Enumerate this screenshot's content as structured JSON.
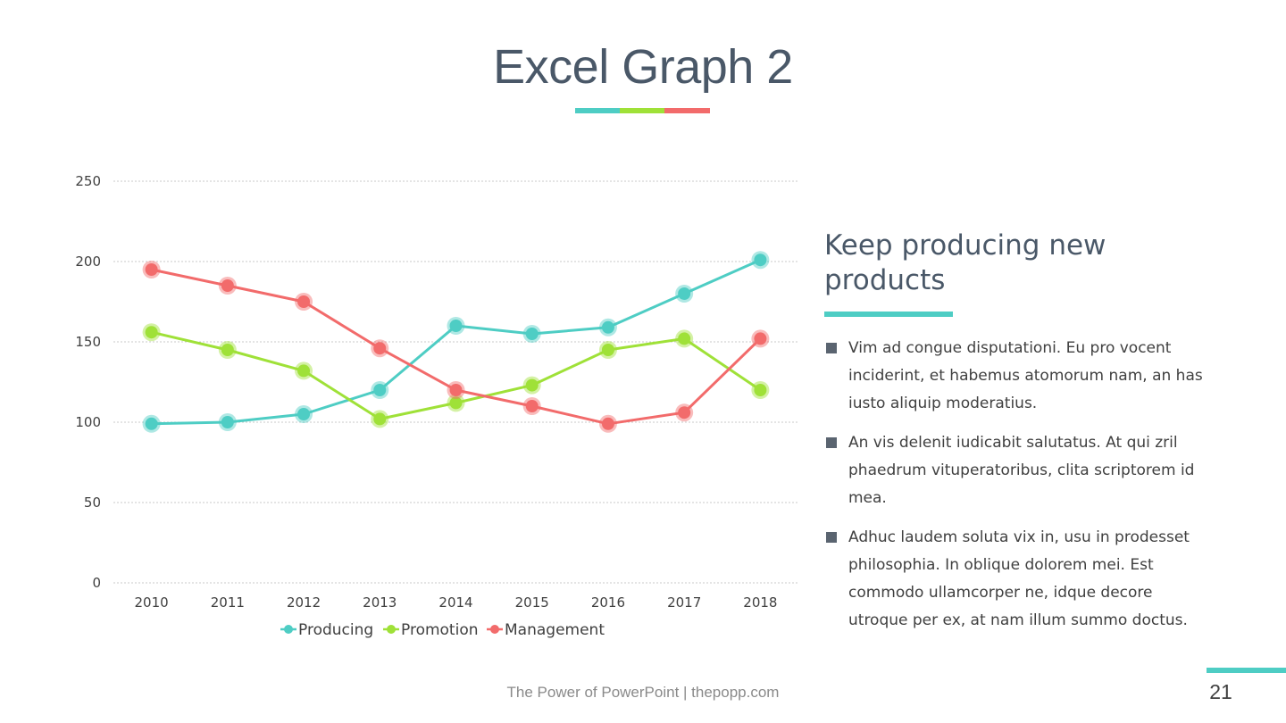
{
  "slide": {
    "title": "Excel Graph 2",
    "title_bar_colors": [
      "#4ecdc4",
      "#9fe138",
      "#f26b6b"
    ],
    "footer": "The Power of PowerPoint | thepopp.com",
    "page_number": "21"
  },
  "side_panel": {
    "heading": "Keep producing new products",
    "bullets": [
      "Vim ad congue disputationi. Eu pro vocent inciderint, et habemus atomorum nam, an has iusto aliquip moderatius.",
      "An vis delenit iudicabit salutatus. At qui zril phaedrum vituperatoribus, clita scriptorem id mea.",
      "Adhuc laudem soluta vix in, usu in prodesset philosophia. In oblique dolorem mei. Est commodo ullamcorper ne, idque decore utroque per ex, at nam illum summo doctus."
    ]
  },
  "chart_data": {
    "type": "line",
    "title": "",
    "xlabel": "",
    "ylabel": "",
    "categories": [
      "2010",
      "2011",
      "2012",
      "2013",
      "2014",
      "2015",
      "2016",
      "2017",
      "2018"
    ],
    "ylim": [
      0,
      250
    ],
    "yticks": [
      0,
      50,
      100,
      150,
      200,
      250
    ],
    "grid": true,
    "legend": "bottom",
    "series": [
      {
        "name": "Producing",
        "color": "#4ecdc4",
        "values": [
          99,
          100,
          105,
          120,
          160,
          155,
          159,
          180,
          201
        ]
      },
      {
        "name": "Promotion",
        "color": "#9fe138",
        "values": [
          156,
          145,
          132,
          102,
          112,
          123,
          145,
          152,
          120
        ]
      },
      {
        "name": "Management",
        "color": "#f26b6b",
        "values": [
          195,
          185,
          175,
          146,
          120,
          110,
          99,
          106,
          152
        ]
      }
    ]
  }
}
